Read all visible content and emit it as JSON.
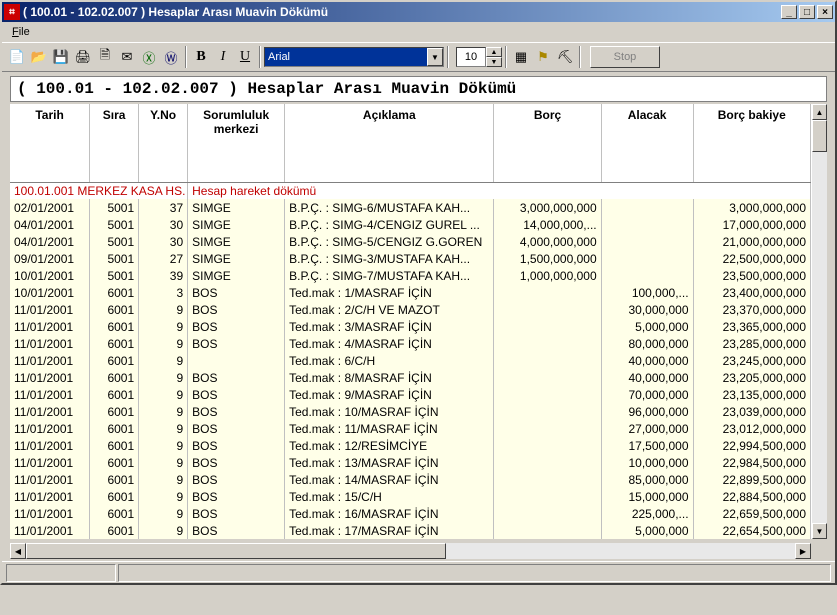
{
  "window": {
    "title": "( 100.01 - 102.02.007 ) Hesaplar Arası Muavin Dökümü",
    "min_glyph": "_",
    "max_glyph": "□",
    "close_glyph": "×"
  },
  "menu": {
    "file": "File"
  },
  "toolbar": {
    "font_name": "Arial",
    "font_size": "10",
    "stop": "Stop"
  },
  "heading": "( 100.01 - 102.02.007 ) Hesaplar Arası Muavin Dökümü",
  "columns": {
    "tarih": "Tarih",
    "sira": "Sıra",
    "yno": "Y.No",
    "sorum": "Sorumluluk merkezi",
    "aciklama": "Açıklama",
    "borc": "Borç",
    "alacak": "Alacak",
    "bakiye": "Borç bakiye"
  },
  "group": {
    "code": "100.01.001 MERKEZ KASA HS.",
    "desc": "Hesap hareket dökümü"
  },
  "rows": [
    {
      "tarih": "02/01/2001",
      "sira": "5001",
      "yno": "37",
      "sorum": "SIMGE",
      "acik": "B.P.Ç. : SIMG-6/MUSTAFA KAH...",
      "borc": "3,000,000,000",
      "alacak": "",
      "bakiye": "3,000,000,000"
    },
    {
      "tarih": "04/01/2001",
      "sira": "5001",
      "yno": "30",
      "sorum": "SIMGE",
      "acik": "B.P.Ç. : SIMG-4/CENGIZ GUREL ...",
      "borc": "14,000,000,...",
      "alacak": "",
      "bakiye": "17,000,000,000"
    },
    {
      "tarih": "04/01/2001",
      "sira": "5001",
      "yno": "30",
      "sorum": "SIMGE",
      "acik": "B.P.Ç. : SIMG-5/CENGIZ G.GOREN",
      "borc": "4,000,000,000",
      "alacak": "",
      "bakiye": "21,000,000,000"
    },
    {
      "tarih": "09/01/2001",
      "sira": "5001",
      "yno": "27",
      "sorum": "SIMGE",
      "acik": "B.P.Ç. : SIMG-3/MUSTAFA KAH...",
      "borc": "1,500,000,000",
      "alacak": "",
      "bakiye": "22,500,000,000"
    },
    {
      "tarih": "10/01/2001",
      "sira": "5001",
      "yno": "39",
      "sorum": "SIMGE",
      "acik": "B.P.Ç. : SIMG-7/MUSTAFA KAH...",
      "borc": "1,000,000,000",
      "alacak": "",
      "bakiye": "23,500,000,000"
    },
    {
      "tarih": "10/01/2001",
      "sira": "6001",
      "yno": "3",
      "sorum": "BOS",
      "acik": "Ted.mak : 1/MASRAF İÇİN",
      "borc": "",
      "alacak": "100,000,...",
      "bakiye": "23,400,000,000"
    },
    {
      "tarih": "11/01/2001",
      "sira": "6001",
      "yno": "9",
      "sorum": "BOS",
      "acik": "Ted.mak : 2/C/H VE MAZOT",
      "borc": "",
      "alacak": "30,000,000",
      "bakiye": "23,370,000,000"
    },
    {
      "tarih": "11/01/2001",
      "sira": "6001",
      "yno": "9",
      "sorum": "BOS",
      "acik": "Ted.mak : 3/MASRAF İÇİN",
      "borc": "",
      "alacak": "5,000,000",
      "bakiye": "23,365,000,000"
    },
    {
      "tarih": "11/01/2001",
      "sira": "6001",
      "yno": "9",
      "sorum": "BOS",
      "acik": "Ted.mak : 4/MASRAF İÇİN",
      "borc": "",
      "alacak": "80,000,000",
      "bakiye": "23,285,000,000"
    },
    {
      "tarih": "11/01/2001",
      "sira": "6001",
      "yno": "9",
      "sorum": "",
      "acik": "Ted.mak : 6/C/H",
      "borc": "",
      "alacak": "40,000,000",
      "bakiye": "23,245,000,000"
    },
    {
      "tarih": "11/01/2001",
      "sira": "6001",
      "yno": "9",
      "sorum": "BOS",
      "acik": "Ted.mak : 8/MASRAF İÇİN",
      "borc": "",
      "alacak": "40,000,000",
      "bakiye": "23,205,000,000"
    },
    {
      "tarih": "11/01/2001",
      "sira": "6001",
      "yno": "9",
      "sorum": "BOS",
      "acik": "Ted.mak : 9/MASRAF İÇİN",
      "borc": "",
      "alacak": "70,000,000",
      "bakiye": "23,135,000,000"
    },
    {
      "tarih": "11/01/2001",
      "sira": "6001",
      "yno": "9",
      "sorum": "BOS",
      "acik": "Ted.mak : 10/MASRAF İÇİN",
      "borc": "",
      "alacak": "96,000,000",
      "bakiye": "23,039,000,000"
    },
    {
      "tarih": "11/01/2001",
      "sira": "6001",
      "yno": "9",
      "sorum": "BOS",
      "acik": "Ted.mak : 11/MASRAF İÇİN",
      "borc": "",
      "alacak": "27,000,000",
      "bakiye": "23,012,000,000"
    },
    {
      "tarih": "11/01/2001",
      "sira": "6001",
      "yno": "9",
      "sorum": "BOS",
      "acik": "Ted.mak : 12/RESİMCİYE",
      "borc": "",
      "alacak": "17,500,000",
      "bakiye": "22,994,500,000"
    },
    {
      "tarih": "11/01/2001",
      "sira": "6001",
      "yno": "9",
      "sorum": "BOS",
      "acik": "Ted.mak : 13/MASRAF İÇİN",
      "borc": "",
      "alacak": "10,000,000",
      "bakiye": "22,984,500,000"
    },
    {
      "tarih": "11/01/2001",
      "sira": "6001",
      "yno": "9",
      "sorum": "BOS",
      "acik": "Ted.mak : 14/MASRAF İÇİN",
      "borc": "",
      "alacak": "85,000,000",
      "bakiye": "22,899,500,000"
    },
    {
      "tarih": "11/01/2001",
      "sira": "6001",
      "yno": "9",
      "sorum": "BOS",
      "acik": "Ted.mak : 15/C/H",
      "borc": "",
      "alacak": "15,000,000",
      "bakiye": "22,884,500,000"
    },
    {
      "tarih": "11/01/2001",
      "sira": "6001",
      "yno": "9",
      "sorum": "BOS",
      "acik": "Ted.mak : 16/MASRAF İÇİN",
      "borc": "",
      "alacak": "225,000,...",
      "bakiye": "22,659,500,000"
    },
    {
      "tarih": "11/01/2001",
      "sira": "6001",
      "yno": "9",
      "sorum": "BOS",
      "acik": "Ted.mak : 17/MASRAF İÇİN",
      "borc": "",
      "alacak": "5,000,000",
      "bakiye": "22,654,500,000"
    }
  ]
}
